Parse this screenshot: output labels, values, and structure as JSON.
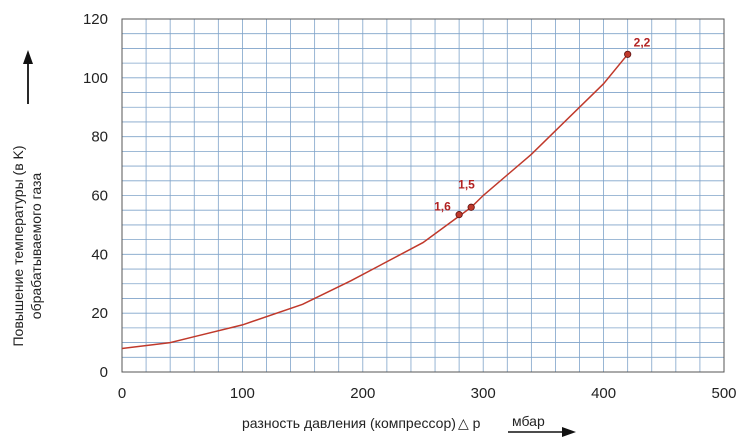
{
  "chart_data": {
    "type": "line",
    "xlabel": "разность давления (компрессор)",
    "xsymbol": "△ p",
    "xunit": "мбар",
    "ylabel_line1": "Повышение температуры (в K)",
    "ylabel_line2": "обрабатываемого газа",
    "xlim": [
      0,
      500
    ],
    "ylim": [
      0,
      120
    ],
    "xticks": [
      0,
      100,
      200,
      300,
      400,
      500
    ],
    "yticks": [
      0,
      20,
      40,
      60,
      80,
      100,
      120
    ],
    "grid": true,
    "series": [
      {
        "color": "#c0392b",
        "x": [
          0,
          40,
          60,
          100,
          150,
          190,
          250,
          280,
          290,
          300,
          340,
          360,
          400,
          420
        ],
        "y": [
          8,
          10,
          12,
          16,
          23,
          31,
          44,
          53,
          56,
          60,
          74,
          82,
          98,
          108
        ]
      }
    ],
    "points": [
      {
        "x": 280,
        "y": 53.5,
        "label": "1,6"
      },
      {
        "x": 290,
        "y": 56,
        "label": "1,5"
      },
      {
        "x": 420,
        "y": 108,
        "label": "2,2"
      }
    ]
  }
}
